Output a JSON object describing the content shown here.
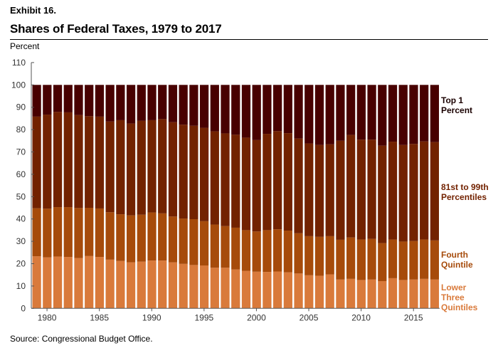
{
  "exhibit": "Exhibit 16.",
  "title": "Shares of Federal Taxes, 1979 to 2017",
  "source": "Source: Congressional Budget Office.",
  "chart_data": {
    "type": "bar",
    "stacked": true,
    "title": "Shares of Federal Taxes, 1979 to 2017",
    "ylabel": "Percent",
    "xlabel": "",
    "ylim": [
      0,
      110
    ],
    "yticks": [
      0,
      10,
      20,
      30,
      40,
      50,
      60,
      70,
      80,
      90,
      100,
      110
    ],
    "xticks": [
      1980,
      1985,
      1990,
      1995,
      2000,
      2005,
      2010,
      2015
    ],
    "grid": false,
    "legend": "right, inline labels",
    "categories": [
      1979,
      1980,
      1981,
      1982,
      1983,
      1984,
      1985,
      1986,
      1987,
      1988,
      1989,
      1990,
      1991,
      1992,
      1993,
      1994,
      1995,
      1996,
      1997,
      1998,
      1999,
      2000,
      2001,
      2002,
      2003,
      2004,
      2005,
      2006,
      2007,
      2008,
      2009,
      2010,
      2011,
      2012,
      2013,
      2014,
      2015,
      2016,
      2017
    ],
    "series": [
      {
        "name": "Lower Three Quintiles",
        "color": "#d97a3b",
        "values": [
          23.3,
          22.8,
          23.2,
          23.0,
          22.5,
          23.4,
          23.0,
          21.8,
          21.2,
          20.6,
          20.9,
          21.4,
          21.4,
          20.6,
          19.9,
          19.4,
          19.2,
          18.2,
          18.2,
          17.4,
          16.8,
          16.4,
          16.3,
          16.5,
          16.1,
          15.6,
          14.8,
          14.6,
          15.2,
          12.9,
          13.2,
          12.7,
          12.9,
          12.2,
          13.5,
          12.7,
          12.9,
          13.2,
          12.9
        ]
      },
      {
        "name": "Fourth Quintile",
        "color": "#a64b0b",
        "values": [
          21.5,
          21.8,
          22.1,
          22.3,
          22.4,
          21.6,
          21.7,
          21.2,
          20.9,
          21.0,
          21.0,
          21.5,
          21.1,
          20.5,
          20.3,
          20.5,
          19.8,
          19.3,
          18.6,
          18.7,
          18.2,
          18.0,
          18.7,
          18.9,
          18.7,
          18.0,
          17.5,
          17.4,
          17.1,
          17.8,
          18.5,
          18.1,
          18.2,
          17.0,
          17.3,
          17.2,
          17.2,
          17.6,
          17.5
        ]
      },
      {
        "name": "81st to 99th Percentiles",
        "color": "#722200",
        "values": [
          41.0,
          42.1,
          42.6,
          42.4,
          41.6,
          41.0,
          41.1,
          40.6,
          42.1,
          41.1,
          42.0,
          41.3,
          42.2,
          42.2,
          42.0,
          41.8,
          41.8,
          41.7,
          41.5,
          41.6,
          41.4,
          40.9,
          43.1,
          43.9,
          43.6,
          42.4,
          41.5,
          41.1,
          41.1,
          44.3,
          45.9,
          44.7,
          44.4,
          43.6,
          43.8,
          43.2,
          43.5,
          43.9,
          44.0
        ]
      },
      {
        "name": "Top 1 Percent",
        "color": "#480000",
        "values": [
          14.2,
          13.3,
          12.1,
          12.3,
          13.5,
          14.0,
          14.2,
          16.4,
          15.8,
          17.3,
          16.1,
          15.8,
          15.3,
          16.7,
          17.8,
          18.3,
          19.2,
          20.8,
          21.7,
          22.3,
          23.6,
          24.7,
          21.9,
          20.7,
          21.6,
          24.0,
          26.2,
          26.9,
          26.6,
          25.0,
          22.4,
          24.5,
          24.5,
          27.2,
          25.4,
          26.9,
          26.4,
          25.3,
          25.6
        ]
      }
    ],
    "legend_labels": [
      {
        "lines": [
          "Top 1",
          "Percent"
        ],
        "color": "#1a0000"
      },
      {
        "lines": [
          "81st to 99th",
          "Percentiles"
        ],
        "color": "#722200"
      },
      {
        "lines": [
          "Fourth",
          "Quintile"
        ],
        "color": "#a64b0b"
      },
      {
        "lines": [
          "Lower",
          "Three",
          "Quintiles"
        ],
        "color": "#d97a3b"
      }
    ]
  }
}
